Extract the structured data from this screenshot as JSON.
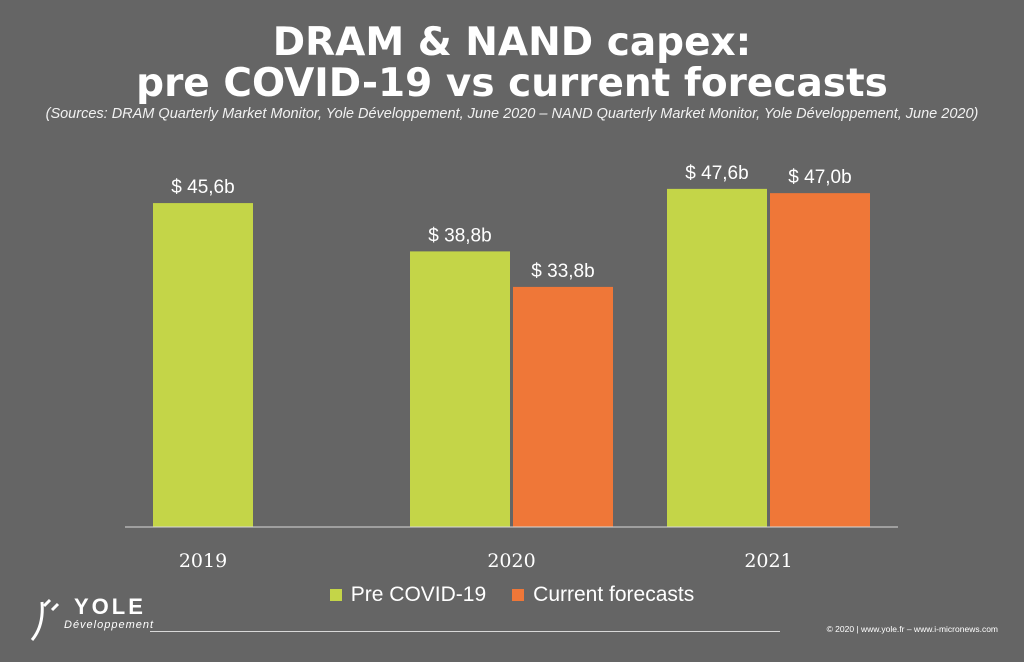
{
  "chart_data": {
    "type": "bar",
    "title": [
      "DRAM & NAND capex:",
      "pre COVID-19 vs current forecasts"
    ],
    "subtitle": "(Sources: DRAM Quarterly Market Monitor, Yole Développement, June 2020 – NAND Quarterly Market Monitor, Yole Développement, June 2020)",
    "categories": [
      "2019",
      "2020",
      "2021"
    ],
    "series": [
      {
        "name": "Pre COVID-19",
        "color": "#c4d548",
        "values": [
          45.6,
          38.8,
          47.6
        ],
        "labels": [
          "$ 45,6b",
          "$ 38,8b",
          "$ 47,6b"
        ]
      },
      {
        "name": "Current forecasts",
        "color": "#ef7738",
        "values": [
          null,
          33.8,
          47.0
        ],
        "labels": [
          "",
          "$ 33,8b",
          "$ 47,0b"
        ]
      }
    ],
    "ylim": [
      0,
      55
    ],
    "grid": false,
    "legend": "bottom-center"
  },
  "branding": {
    "logo_name": "YOLE",
    "logo_sub": "Développement",
    "copyright": "© 2020 | www.yole.fr – www.i-micronews.com"
  }
}
